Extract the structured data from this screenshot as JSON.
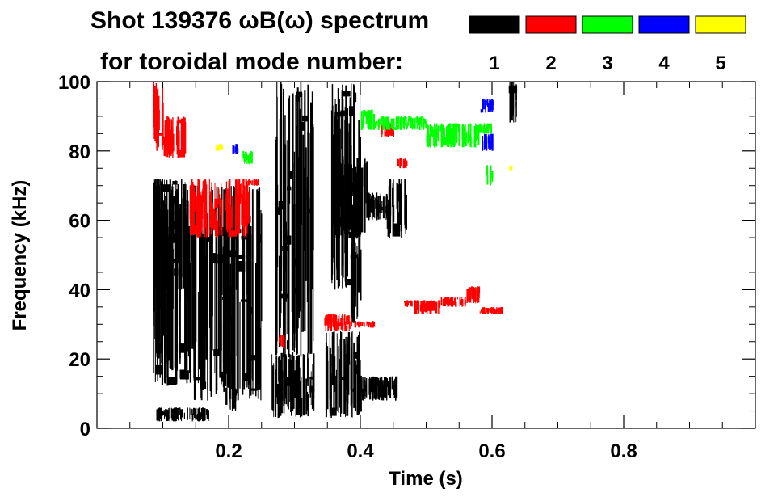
{
  "chart_data": {
    "type": "heatmap",
    "title_line1": "Shot 139376 ωB(ω) spectrum",
    "title_line2": "for toroidal mode number:",
    "xlabel": "Time (s)",
    "ylabel": "Frequency (kHz)",
    "xlim": [
      0.0,
      1.0
    ],
    "ylim": [
      0,
      100
    ],
    "x_ticks": [
      0.2,
      0.4,
      0.6,
      0.8
    ],
    "x_tick_labels": [
      "0.2",
      "0.4",
      "0.6",
      "0.8"
    ],
    "y_ticks": [
      0,
      20,
      40,
      60,
      80,
      100
    ],
    "y_tick_labels": [
      "0",
      "20",
      "40",
      "60",
      "80",
      "100"
    ],
    "legend_position": "top-right",
    "series": [
      {
        "name": "1",
        "color": "#000000"
      },
      {
        "name": "2",
        "color": "#ff0000"
      },
      {
        "name": "3",
        "color": "#00ff00"
      },
      {
        "name": "4",
        "color": "#0000ff"
      },
      {
        "name": "5",
        "color": "#ffff00"
      }
    ],
    "regions": [
      {
        "mode": "1",
        "t": [
          0.085,
          0.135
        ],
        "f": [
          40,
          72
        ]
      },
      {
        "mode": "1",
        "t": [
          0.085,
          0.145
        ],
        "f": [
          12,
          72
        ]
      },
      {
        "mode": "1",
        "t": [
          0.145,
          0.25
        ],
        "f": [
          8,
          70
        ]
      },
      {
        "mode": "1",
        "t": [
          0.09,
          0.17
        ],
        "f": [
          2,
          6
        ]
      },
      {
        "mode": "1",
        "t": [
          0.195,
          0.21
        ],
        "f": [
          5,
          12
        ]
      },
      {
        "mode": "1",
        "t": [
          0.265,
          0.33
        ],
        "f": [
          3,
          22
        ]
      },
      {
        "mode": "1",
        "t": [
          0.27,
          0.33
        ],
        "f": [
          20,
          100
        ]
      },
      {
        "mode": "1",
        "t": [
          0.345,
          0.4
        ],
        "f": [
          3,
          28
        ]
      },
      {
        "mode": "1",
        "t": [
          0.4,
          0.455
        ],
        "f": [
          8,
          15
        ]
      },
      {
        "mode": "1",
        "t": [
          0.355,
          0.4
        ],
        "f": [
          40,
          100
        ]
      },
      {
        "mode": "1",
        "t": [
          0.36,
          0.41
        ],
        "f": [
          55,
          78
        ]
      },
      {
        "mode": "1",
        "t": [
          0.41,
          0.44
        ],
        "f": [
          60,
          68
        ]
      },
      {
        "mode": "1",
        "t": [
          0.44,
          0.47
        ],
        "f": [
          55,
          72
        ]
      },
      {
        "mode": "1",
        "t": [
          0.385,
          0.4
        ],
        "f": [
          30,
          55
        ]
      },
      {
        "mode": "1",
        "t": [
          0.625,
          0.64
        ],
        "f": [
          88,
          100
        ]
      },
      {
        "mode": "2",
        "t": [
          0.085,
          0.1
        ],
        "f": [
          80,
          100
        ]
      },
      {
        "mode": "2",
        "t": [
          0.1,
          0.135
        ],
        "f": [
          78,
          90
        ]
      },
      {
        "mode": "2",
        "t": [
          0.14,
          0.23
        ],
        "f": [
          55,
          72
        ]
      },
      {
        "mode": "2",
        "t": [
          0.225,
          0.245
        ],
        "f": [
          70,
          72
        ]
      },
      {
        "mode": "2",
        "t": [
          0.275,
          0.285
        ],
        "f": [
          23,
          27
        ]
      },
      {
        "mode": "2",
        "t": [
          0.345,
          0.39
        ],
        "f": [
          28,
          33
        ]
      },
      {
        "mode": "2",
        "t": [
          0.39,
          0.42
        ],
        "f": [
          29,
          31
        ]
      },
      {
        "mode": "2",
        "t": [
          0.465,
          0.48
        ],
        "f": [
          35,
          37
        ]
      },
      {
        "mode": "2",
        "t": [
          0.48,
          0.52
        ],
        "f": [
          33,
          37
        ]
      },
      {
        "mode": "2",
        "t": [
          0.52,
          0.56
        ],
        "f": [
          35,
          38
        ]
      },
      {
        "mode": "2",
        "t": [
          0.56,
          0.58
        ],
        "f": [
          36,
          41
        ]
      },
      {
        "mode": "2",
        "t": [
          0.58,
          0.62
        ],
        "f": [
          33,
          35
        ]
      },
      {
        "mode": "2",
        "t": [
          0.43,
          0.45
        ],
        "f": [
          84,
          88
        ]
      },
      {
        "mode": "2",
        "t": [
          0.455,
          0.47
        ],
        "f": [
          75,
          78
        ]
      },
      {
        "mode": "3",
        "t": [
          0.4,
          0.42
        ],
        "f": [
          86,
          92
        ]
      },
      {
        "mode": "3",
        "t": [
          0.42,
          0.5
        ],
        "f": [
          86,
          90
        ]
      },
      {
        "mode": "3",
        "t": [
          0.5,
          0.58
        ],
        "f": [
          81,
          88
        ]
      },
      {
        "mode": "3",
        "t": [
          0.58,
          0.6
        ],
        "f": [
          85,
          88
        ]
      },
      {
        "mode": "3",
        "t": [
          0.59,
          0.6
        ],
        "f": [
          70,
          76
        ]
      },
      {
        "mode": "3",
        "t": [
          0.22,
          0.235
        ],
        "f": [
          76,
          80
        ]
      },
      {
        "mode": "4",
        "t": [
          0.58,
          0.6
        ],
        "f": [
          91,
          95
        ]
      },
      {
        "mode": "4",
        "t": [
          0.585,
          0.6
        ],
        "f": [
          80,
          85
        ]
      },
      {
        "mode": "4",
        "t": [
          0.205,
          0.215
        ],
        "f": [
          79,
          82
        ]
      },
      {
        "mode": "5",
        "t": [
          0.18,
          0.19
        ],
        "f": [
          80,
          82
        ]
      },
      {
        "mode": "5",
        "t": [
          0.625,
          0.63
        ],
        "f": [
          74,
          76
        ]
      }
    ]
  }
}
